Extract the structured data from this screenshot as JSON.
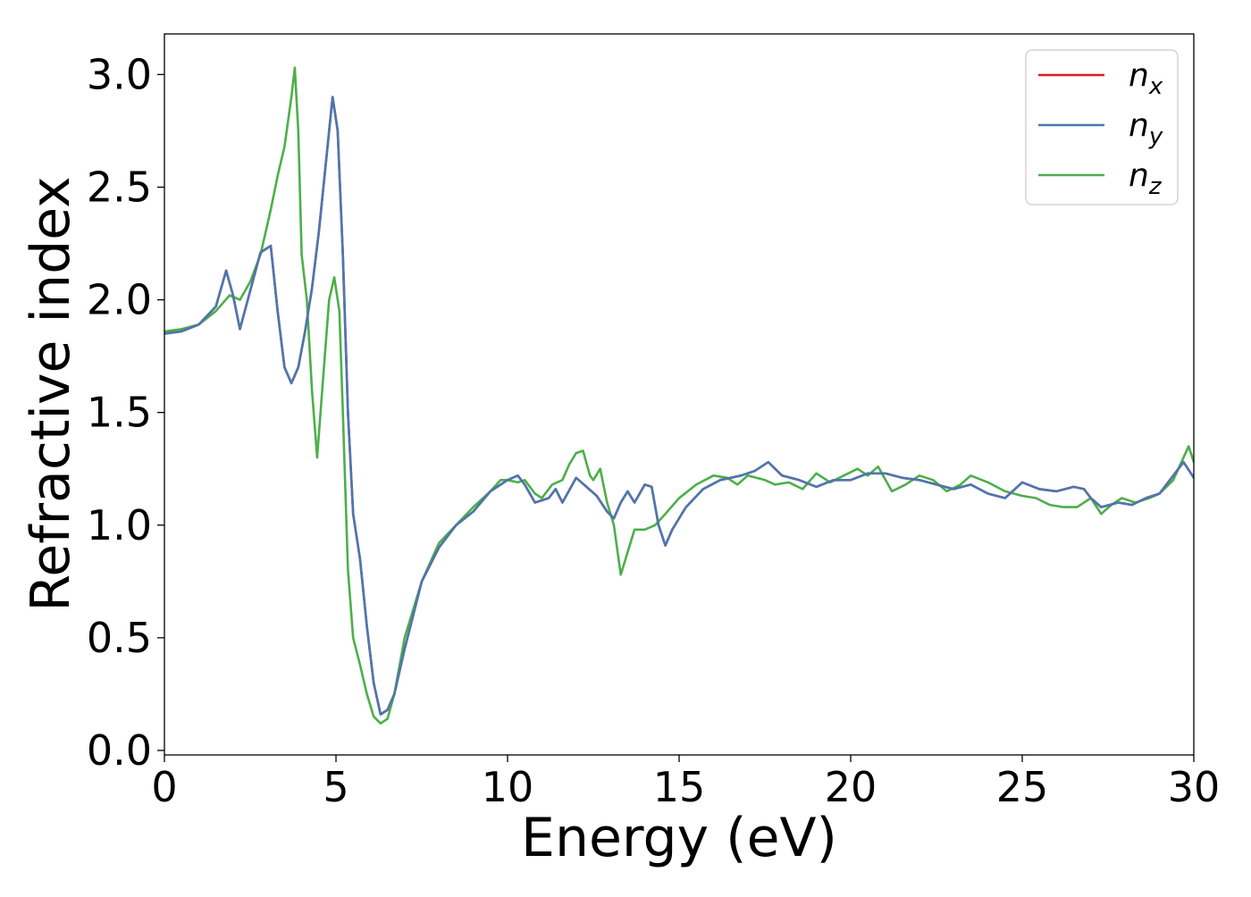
{
  "chart_data": {
    "type": "line",
    "title": "",
    "xlabel": "Energy (eV)",
    "ylabel": "Refractive index",
    "xlim": [
      0,
      30
    ],
    "ylim": [
      -0.02,
      3.18
    ],
    "xticks": [
      0,
      5,
      10,
      15,
      20,
      25,
      30
    ],
    "yticks": [
      0.0,
      0.5,
      1.0,
      1.5,
      2.0,
      2.5,
      3.0
    ],
    "xtick_labels": [
      "0",
      "5",
      "10",
      "15",
      "20",
      "25",
      "30"
    ],
    "ytick_labels": [
      "0.0",
      "0.5",
      "1.0",
      "1.5",
      "2.0",
      "2.5",
      "3.0"
    ],
    "grid": false,
    "legend_position": "top-right",
    "series": [
      {
        "name": "n_x",
        "legend_base": "n",
        "legend_sub": "x",
        "color": "#e41a1c",
        "points": [
          [
            0,
            1.85
          ],
          [
            0.5,
            1.86
          ],
          [
            1.0,
            1.89
          ],
          [
            1.5,
            1.97
          ],
          [
            1.8,
            2.13
          ],
          [
            2.0,
            2.02
          ],
          [
            2.2,
            1.87
          ],
          [
            2.5,
            2.04
          ],
          [
            2.8,
            2.21
          ],
          [
            3.1,
            2.24
          ],
          [
            3.3,
            1.95
          ],
          [
            3.5,
            1.7
          ],
          [
            3.7,
            1.63
          ],
          [
            3.9,
            1.7
          ],
          [
            4.1,
            1.86
          ],
          [
            4.3,
            2.05
          ],
          [
            4.5,
            2.3
          ],
          [
            4.7,
            2.6
          ],
          [
            4.9,
            2.9
          ],
          [
            5.05,
            2.75
          ],
          [
            5.2,
            2.2
          ],
          [
            5.35,
            1.5
          ],
          [
            5.5,
            1.05
          ],
          [
            5.7,
            0.85
          ],
          [
            5.9,
            0.55
          ],
          [
            6.1,
            0.3
          ],
          [
            6.3,
            0.16
          ],
          [
            6.5,
            0.18
          ],
          [
            6.7,
            0.25
          ],
          [
            7.0,
            0.45
          ],
          [
            7.5,
            0.75
          ],
          [
            8.0,
            0.9
          ],
          [
            8.5,
            1.0
          ],
          [
            9.0,
            1.06
          ],
          [
            9.5,
            1.15
          ],
          [
            10.0,
            1.2
          ],
          [
            10.3,
            1.22
          ],
          [
            10.5,
            1.18
          ],
          [
            10.8,
            1.1
          ],
          [
            11.2,
            1.12
          ],
          [
            11.4,
            1.16
          ],
          [
            11.6,
            1.1
          ],
          [
            12.0,
            1.21
          ],
          [
            12.3,
            1.17
          ],
          [
            12.6,
            1.13
          ],
          [
            12.9,
            1.06
          ],
          [
            13.1,
            1.03
          ],
          [
            13.3,
            1.1
          ],
          [
            13.5,
            1.15
          ],
          [
            13.7,
            1.1
          ],
          [
            14.0,
            1.18
          ],
          [
            14.2,
            1.17
          ],
          [
            14.4,
            1.0
          ],
          [
            14.6,
            0.91
          ],
          [
            14.8,
            0.98
          ],
          [
            15.2,
            1.08
          ],
          [
            15.7,
            1.16
          ],
          [
            16.2,
            1.2
          ],
          [
            16.8,
            1.22
          ],
          [
            17.2,
            1.24
          ],
          [
            17.6,
            1.28
          ],
          [
            18.0,
            1.22
          ],
          [
            18.5,
            1.2
          ],
          [
            19.0,
            1.17
          ],
          [
            19.5,
            1.2
          ],
          [
            20.0,
            1.2
          ],
          [
            20.5,
            1.23
          ],
          [
            21.0,
            1.23
          ],
          [
            21.5,
            1.21
          ],
          [
            22.0,
            1.2
          ],
          [
            22.5,
            1.18
          ],
          [
            23.0,
            1.16
          ],
          [
            23.5,
            1.18
          ],
          [
            24.0,
            1.14
          ],
          [
            24.5,
            1.12
          ],
          [
            25.0,
            1.19
          ],
          [
            25.5,
            1.16
          ],
          [
            26.0,
            1.15
          ],
          [
            26.5,
            1.17
          ],
          [
            26.8,
            1.16
          ],
          [
            27.0,
            1.12
          ],
          [
            27.3,
            1.08
          ],
          [
            27.8,
            1.1
          ],
          [
            28.2,
            1.09
          ],
          [
            28.6,
            1.12
          ],
          [
            29.0,
            1.14
          ],
          [
            29.4,
            1.22
          ],
          [
            29.7,
            1.28
          ],
          [
            30.0,
            1.21
          ]
        ]
      },
      {
        "name": "n_y",
        "legend_base": "n",
        "legend_sub": "y",
        "color": "#4a78b0",
        "points": [
          [
            0,
            1.85
          ],
          [
            0.5,
            1.86
          ],
          [
            1.0,
            1.89
          ],
          [
            1.5,
            1.97
          ],
          [
            1.8,
            2.13
          ],
          [
            2.0,
            2.02
          ],
          [
            2.2,
            1.87
          ],
          [
            2.5,
            2.04
          ],
          [
            2.8,
            2.21
          ],
          [
            3.1,
            2.24
          ],
          [
            3.3,
            1.95
          ],
          [
            3.5,
            1.7
          ],
          [
            3.7,
            1.63
          ],
          [
            3.9,
            1.7
          ],
          [
            4.1,
            1.86
          ],
          [
            4.3,
            2.05
          ],
          [
            4.5,
            2.3
          ],
          [
            4.7,
            2.6
          ],
          [
            4.9,
            2.9
          ],
          [
            5.05,
            2.75
          ],
          [
            5.2,
            2.2
          ],
          [
            5.35,
            1.5
          ],
          [
            5.5,
            1.05
          ],
          [
            5.7,
            0.85
          ],
          [
            5.9,
            0.55
          ],
          [
            6.1,
            0.3
          ],
          [
            6.3,
            0.16
          ],
          [
            6.5,
            0.18
          ],
          [
            6.7,
            0.25
          ],
          [
            7.0,
            0.45
          ],
          [
            7.5,
            0.75
          ],
          [
            8.0,
            0.9
          ],
          [
            8.5,
            1.0
          ],
          [
            9.0,
            1.06
          ],
          [
            9.5,
            1.15
          ],
          [
            10.0,
            1.2
          ],
          [
            10.3,
            1.22
          ],
          [
            10.5,
            1.18
          ],
          [
            10.8,
            1.1
          ],
          [
            11.2,
            1.12
          ],
          [
            11.4,
            1.16
          ],
          [
            11.6,
            1.1
          ],
          [
            12.0,
            1.21
          ],
          [
            12.3,
            1.17
          ],
          [
            12.6,
            1.13
          ],
          [
            12.9,
            1.06
          ],
          [
            13.1,
            1.03
          ],
          [
            13.3,
            1.1
          ],
          [
            13.5,
            1.15
          ],
          [
            13.7,
            1.1
          ],
          [
            14.0,
            1.18
          ],
          [
            14.2,
            1.17
          ],
          [
            14.4,
            1.0
          ],
          [
            14.6,
            0.91
          ],
          [
            14.8,
            0.98
          ],
          [
            15.2,
            1.08
          ],
          [
            15.7,
            1.16
          ],
          [
            16.2,
            1.2
          ],
          [
            16.8,
            1.22
          ],
          [
            17.2,
            1.24
          ],
          [
            17.6,
            1.28
          ],
          [
            18.0,
            1.22
          ],
          [
            18.5,
            1.2
          ],
          [
            19.0,
            1.17
          ],
          [
            19.5,
            1.2
          ],
          [
            20.0,
            1.2
          ],
          [
            20.5,
            1.23
          ],
          [
            21.0,
            1.23
          ],
          [
            21.5,
            1.21
          ],
          [
            22.0,
            1.2
          ],
          [
            22.5,
            1.18
          ],
          [
            23.0,
            1.16
          ],
          [
            23.5,
            1.18
          ],
          [
            24.0,
            1.14
          ],
          [
            24.5,
            1.12
          ],
          [
            25.0,
            1.19
          ],
          [
            25.5,
            1.16
          ],
          [
            26.0,
            1.15
          ],
          [
            26.5,
            1.17
          ],
          [
            26.8,
            1.16
          ],
          [
            27.0,
            1.12
          ],
          [
            27.3,
            1.08
          ],
          [
            27.8,
            1.1
          ],
          [
            28.2,
            1.09
          ],
          [
            28.6,
            1.12
          ],
          [
            29.0,
            1.14
          ],
          [
            29.4,
            1.22
          ],
          [
            29.7,
            1.28
          ],
          [
            30.0,
            1.21
          ]
        ]
      },
      {
        "name": "n_z",
        "legend_base": "n",
        "legend_sub": "z",
        "color": "#4daf4a",
        "points": [
          [
            0,
            1.86
          ],
          [
            0.5,
            1.87
          ],
          [
            1.0,
            1.89
          ],
          [
            1.5,
            1.95
          ],
          [
            1.9,
            2.02
          ],
          [
            2.2,
            2.0
          ],
          [
            2.5,
            2.08
          ],
          [
            2.8,
            2.2
          ],
          [
            3.1,
            2.4
          ],
          [
            3.3,
            2.55
          ],
          [
            3.5,
            2.68
          ],
          [
            3.7,
            2.9
          ],
          [
            3.8,
            3.03
          ],
          [
            3.9,
            2.75
          ],
          [
            4.0,
            2.2
          ],
          [
            4.15,
            2.0
          ],
          [
            4.3,
            1.6
          ],
          [
            4.45,
            1.3
          ],
          [
            4.6,
            1.6
          ],
          [
            4.8,
            2.0
          ],
          [
            4.95,
            2.1
          ],
          [
            5.1,
            1.95
          ],
          [
            5.2,
            1.5
          ],
          [
            5.35,
            0.8
          ],
          [
            5.5,
            0.5
          ],
          [
            5.7,
            0.38
          ],
          [
            5.9,
            0.25
          ],
          [
            6.1,
            0.15
          ],
          [
            6.3,
            0.12
          ],
          [
            6.5,
            0.14
          ],
          [
            6.7,
            0.25
          ],
          [
            7.0,
            0.5
          ],
          [
            7.5,
            0.75
          ],
          [
            8.0,
            0.92
          ],
          [
            8.5,
            1.0
          ],
          [
            9.0,
            1.08
          ],
          [
            9.5,
            1.15
          ],
          [
            9.8,
            1.2
          ],
          [
            10.0,
            1.2
          ],
          [
            10.3,
            1.19
          ],
          [
            10.5,
            1.2
          ],
          [
            10.8,
            1.14
          ],
          [
            11.0,
            1.12
          ],
          [
            11.3,
            1.18
          ],
          [
            11.6,
            1.2
          ],
          [
            11.8,
            1.27
          ],
          [
            12.0,
            1.32
          ],
          [
            12.2,
            1.33
          ],
          [
            12.4,
            1.22
          ],
          [
            12.5,
            1.2
          ],
          [
            12.7,
            1.25
          ],
          [
            12.9,
            1.1
          ],
          [
            13.1,
            1.0
          ],
          [
            13.3,
            0.78
          ],
          [
            13.5,
            0.88
          ],
          [
            13.7,
            0.98
          ],
          [
            14.0,
            0.98
          ],
          [
            14.3,
            1.0
          ],
          [
            14.6,
            1.05
          ],
          [
            15.0,
            1.12
          ],
          [
            15.5,
            1.18
          ],
          [
            16.0,
            1.22
          ],
          [
            16.4,
            1.21
          ],
          [
            16.7,
            1.18
          ],
          [
            17.0,
            1.22
          ],
          [
            17.5,
            1.2
          ],
          [
            17.8,
            1.18
          ],
          [
            18.2,
            1.19
          ],
          [
            18.6,
            1.16
          ],
          [
            19.0,
            1.23
          ],
          [
            19.4,
            1.19
          ],
          [
            19.8,
            1.22
          ],
          [
            20.2,
            1.25
          ],
          [
            20.5,
            1.22
          ],
          [
            20.8,
            1.26
          ],
          [
            21.2,
            1.15
          ],
          [
            21.6,
            1.18
          ],
          [
            22.0,
            1.22
          ],
          [
            22.4,
            1.2
          ],
          [
            22.8,
            1.15
          ],
          [
            23.2,
            1.18
          ],
          [
            23.5,
            1.22
          ],
          [
            24.0,
            1.19
          ],
          [
            24.5,
            1.15
          ],
          [
            25.0,
            1.13
          ],
          [
            25.4,
            1.12
          ],
          [
            25.8,
            1.09
          ],
          [
            26.2,
            1.08
          ],
          [
            26.6,
            1.08
          ],
          [
            27.0,
            1.12
          ],
          [
            27.3,
            1.05
          ],
          [
            27.6,
            1.09
          ],
          [
            27.9,
            1.12
          ],
          [
            28.3,
            1.1
          ],
          [
            28.7,
            1.12
          ],
          [
            29.0,
            1.14
          ],
          [
            29.4,
            1.2
          ],
          [
            29.7,
            1.3
          ],
          [
            29.85,
            1.35
          ],
          [
            30.0,
            1.28
          ]
        ]
      }
    ]
  }
}
